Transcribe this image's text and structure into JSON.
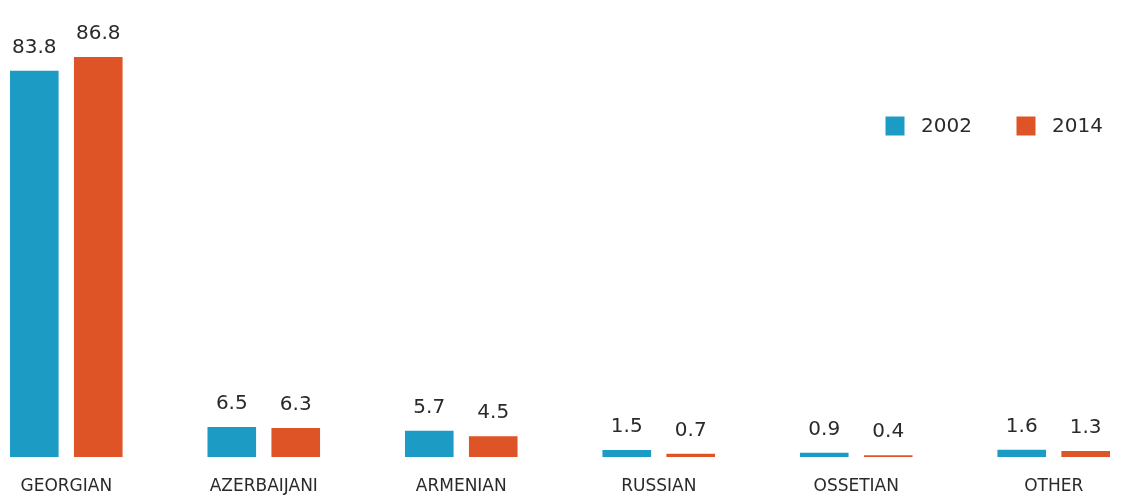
{
  "chart_data": {
    "type": "bar",
    "categories": [
      "GEORGIAN",
      "AZERBAIJANI",
      "ARMENIAN",
      "RUSSIAN",
      "OSSETIAN",
      "OTHER"
    ],
    "series": [
      {
        "name": "2002",
        "color": "#1c9bc5",
        "values": [
          83.8,
          6.5,
          5.7,
          1.5,
          0.9,
          1.6
        ]
      },
      {
        "name": "2014",
        "color": "#de5427",
        "values": [
          86.8,
          6.3,
          4.5,
          0.7,
          0.4,
          1.3
        ]
      }
    ],
    "data_labels": true,
    "legend": "top right"
  }
}
